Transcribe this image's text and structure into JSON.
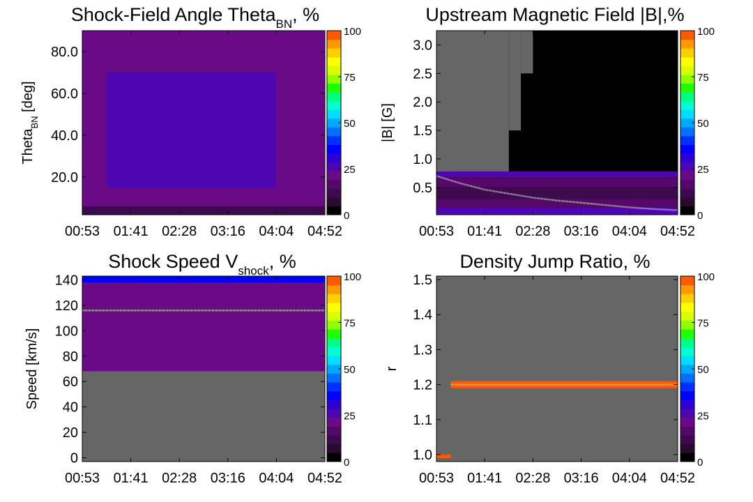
{
  "colors": {
    "background": "#ffffff",
    "no_data": "#666666",
    "frame": "#000000",
    "fit_line": "#cccccc"
  },
  "colorbar": {
    "ticks": [
      "0",
      "25",
      "50",
      "75",
      "100"
    ],
    "palette": [
      "#000000",
      "#2a0a2e",
      "#3e0a4e",
      "#55076a",
      "#6b0a86",
      "#4d06b0",
      "#2e00d6",
      "#0000ff",
      "#0030ff",
      "#0070ff",
      "#00a8ff",
      "#00ddff",
      "#00ffd0",
      "#00ff80",
      "#20ff00",
      "#90ff00",
      "#d8ff00",
      "#ffff00",
      "#ffd000",
      "#ff9a00",
      "#ff5a00"
    ]
  },
  "chart_data": [
    {
      "id": "theta",
      "type": "heatmap",
      "title_main": "Shock-Field Angle Theta",
      "title_sub": "BN",
      "title_tail": ", %",
      "ylabel_main": "Theta",
      "ylabel_sub": "BN",
      "ylabel_tail": " [deg]",
      "x_ticks": [
        "00:53",
        "01:41",
        "02:28",
        "03:16",
        "04:04",
        "04:52"
      ],
      "y_ticks": [
        {
          "label": "20.0",
          "value": 20
        },
        {
          "label": "40.0",
          "value": 40
        },
        {
          "label": "60.0",
          "value": 60
        },
        {
          "label": "80.0",
          "value": 80
        }
      ],
      "ylim": [
        2,
        90
      ],
      "xlim": [
        0,
        1
      ],
      "colorbar_range": [
        0,
        100
      ],
      "regions": [
        {
          "x": [
            0,
            1
          ],
          "y": [
            2,
            90
          ],
          "level": 4
        },
        {
          "x": [
            0.1,
            0.8
          ],
          "y": [
            15,
            70
          ],
          "level": 5
        },
        {
          "x": [
            0,
            1
          ],
          "y": [
            2,
            6
          ],
          "level": 2
        }
      ],
      "fit_line": []
    },
    {
      "id": "bfield",
      "type": "heatmap",
      "title_main": "Upstream Magnetic Field |B|,%",
      "title_sub": "",
      "title_tail": "",
      "ylabel_main": "|B| [G]",
      "ylabel_sub": "",
      "ylabel_tail": "",
      "x_ticks": [
        "00:53",
        "01:41",
        "02:28",
        "03:16",
        "04:04",
        "04:52"
      ],
      "y_ticks": [
        {
          "label": "0.5",
          "value": 0.5
        },
        {
          "label": "1.0",
          "value": 1.0
        },
        {
          "label": "1.5",
          "value": 1.5
        },
        {
          "label": "2.0",
          "value": 2.0
        },
        {
          "label": "2.5",
          "value": 2.5
        },
        {
          "label": "3.0",
          "value": 3.0
        }
      ],
      "ylim": [
        0.02,
        3.25
      ],
      "xlim": [
        0,
        1
      ],
      "colorbar_range": [
        0,
        100
      ],
      "regions": [
        {
          "x": [
            0,
            1
          ],
          "y": [
            0.02,
            3.25
          ],
          "level": 0
        },
        {
          "x": [
            0,
            0.3
          ],
          "y": [
            0.75,
            3.25
          ],
          "level": -1
        },
        {
          "x": [
            0.3,
            0.35
          ],
          "y": [
            1.5,
            3.25
          ],
          "level": -1
        },
        {
          "x": [
            0.35,
            0.4
          ],
          "y": [
            2.5,
            3.25
          ],
          "level": -1
        },
        {
          "x": [
            0,
            1
          ],
          "y": [
            0.68,
            0.78
          ],
          "level": 5
        },
        {
          "x": [
            0,
            1
          ],
          "y": [
            0.5,
            0.68
          ],
          "level": 3
        },
        {
          "x": [
            0,
            1
          ],
          "y": [
            0.3,
            0.5
          ],
          "level": 2
        },
        {
          "x": [
            0,
            1
          ],
          "y": [
            0.15,
            0.3
          ],
          "level": 3
        },
        {
          "x": [
            0,
            1
          ],
          "y": [
            0.02,
            0.15
          ],
          "level": 5
        }
      ],
      "fit_line": [
        {
          "x": 0.0,
          "y": 0.7
        },
        {
          "x": 0.1,
          "y": 0.57
        },
        {
          "x": 0.2,
          "y": 0.46
        },
        {
          "x": 0.3,
          "y": 0.39
        },
        {
          "x": 0.4,
          "y": 0.32
        },
        {
          "x": 0.5,
          "y": 0.27
        },
        {
          "x": 0.6,
          "y": 0.23
        },
        {
          "x": 0.7,
          "y": 0.19
        },
        {
          "x": 0.8,
          "y": 0.15
        },
        {
          "x": 0.9,
          "y": 0.12
        },
        {
          "x": 1.0,
          "y": 0.1
        }
      ]
    },
    {
      "id": "speed",
      "type": "heatmap",
      "title_main": "Shock Speed V",
      "title_sub": "shock",
      "title_tail": ", %",
      "ylabel_main": "Speed [km/s]",
      "ylabel_sub": "",
      "ylabel_tail": "",
      "x_ticks": [
        "00:53",
        "01:41",
        "02:28",
        "03:16",
        "04:04",
        "04:52"
      ],
      "y_ticks": [
        {
          "label": "0",
          "value": 0
        },
        {
          "label": "20",
          "value": 20
        },
        {
          "label": "40",
          "value": 40
        },
        {
          "label": "60",
          "value": 60
        },
        {
          "label": "80",
          "value": 80
        },
        {
          "label": "100",
          "value": 100
        },
        {
          "label": "120",
          "value": 120
        },
        {
          "label": "140",
          "value": 140
        }
      ],
      "ylim": [
        -3,
        143
      ],
      "xlim": [
        0,
        1
      ],
      "colorbar_range": [
        0,
        100
      ],
      "regions": [
        {
          "x": [
            0,
            1
          ],
          "y": [
            -3,
            68
          ],
          "level": -1
        },
        {
          "x": [
            0,
            1
          ],
          "y": [
            68,
            143
          ],
          "level": 4
        },
        {
          "x": [
            0,
            1
          ],
          "y": [
            138,
            143
          ],
          "level": 7
        }
      ],
      "fit_line": [
        {
          "x": 0,
          "y": 116
        },
        {
          "x": 1,
          "y": 116
        }
      ]
    },
    {
      "id": "density",
      "type": "heatmap",
      "title_main": "Density Jump Ratio, %",
      "title_sub": "",
      "title_tail": "",
      "ylabel_main": "r",
      "ylabel_sub": "",
      "ylabel_tail": "",
      "x_ticks": [
        "00:53",
        "01:41",
        "02:28",
        "03:16",
        "04:04",
        "04:52"
      ],
      "y_ticks": [
        {
          "label": "1.0",
          "value": 1.0
        },
        {
          "label": "1.1",
          "value": 1.1
        },
        {
          "label": "1.2",
          "value": 1.2
        },
        {
          "label": "1.3",
          "value": 1.3
        },
        {
          "label": "1.4",
          "value": 1.4
        },
        {
          "label": "1.5",
          "value": 1.5
        }
      ],
      "ylim": [
        0.98,
        1.51
      ],
      "xlim": [
        0,
        1
      ],
      "colorbar_range": [
        0,
        100
      ],
      "regions": [
        {
          "x": [
            0,
            1
          ],
          "y": [
            0.98,
            1.51
          ],
          "level": -1
        },
        {
          "x": [
            0.06,
            1
          ],
          "y": [
            1.19,
            1.21
          ],
          "level": 20
        },
        {
          "x": [
            0,
            0.06
          ],
          "y": [
            0.99,
            1.0
          ],
          "level": 20
        }
      ],
      "fit_line": [
        {
          "x": 0.06,
          "y": 1.2
        },
        {
          "x": 1,
          "y": 1.2
        }
      ]
    }
  ]
}
